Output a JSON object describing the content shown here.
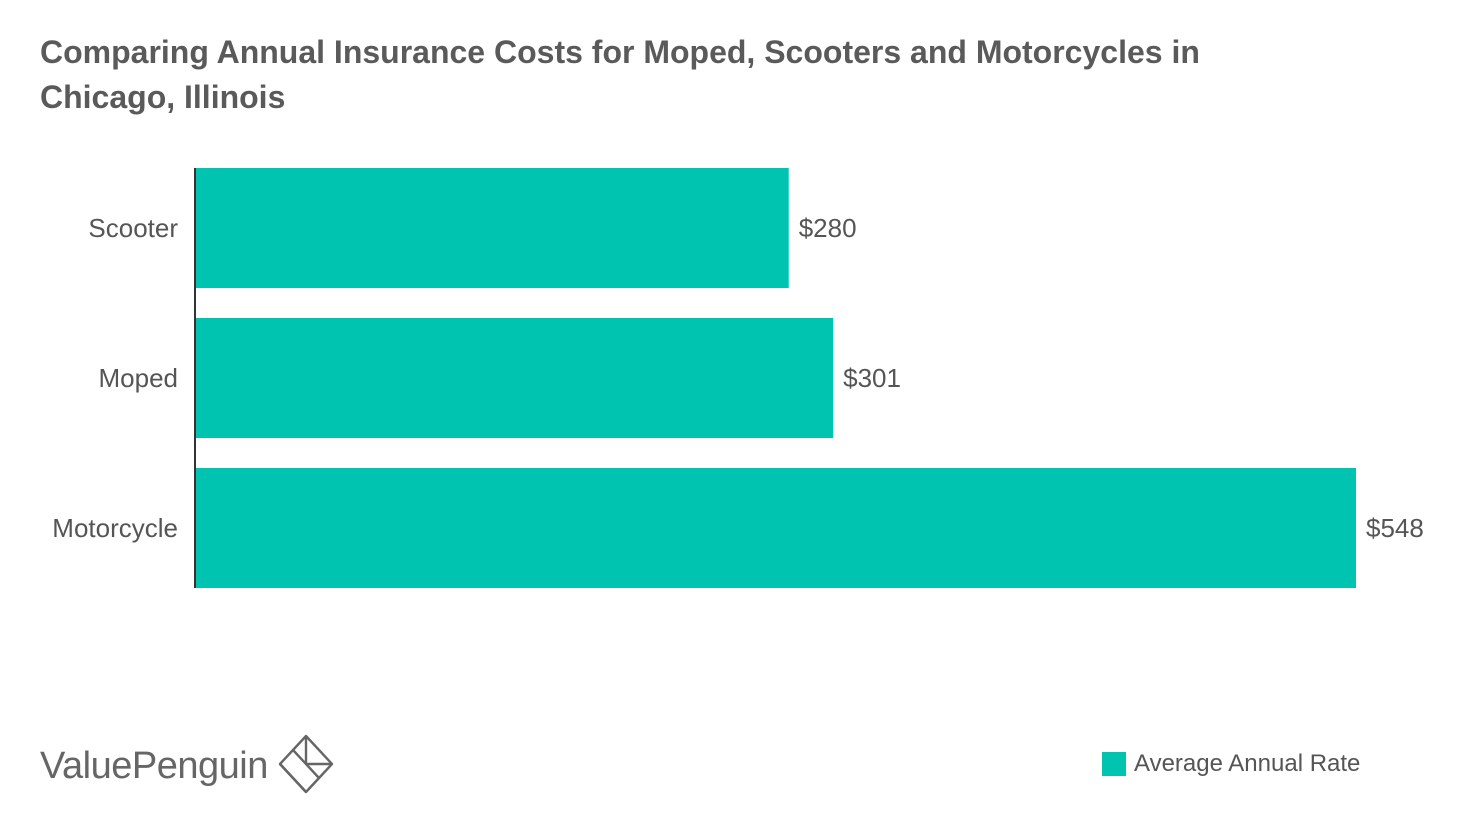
{
  "chart_data": {
    "type": "bar",
    "orientation": "horizontal",
    "title": "Comparing Annual Insurance Costs for Moped, Scooters and Motorcycles in Chicago, Illinois",
    "categories": [
      "Scooter",
      "Moped",
      "Motorcycle"
    ],
    "series": [
      {
        "name": "Average Annual Rate",
        "values": [
          280,
          301,
          548
        ],
        "value_labels": [
          "$280",
          "$301",
          "$548"
        ],
        "color": "#00c4b0"
      }
    ],
    "xlim": [
      0,
      548
    ],
    "grid": false,
    "legend": "bottom-right"
  },
  "branding": {
    "logo_text": "ValuePenguin",
    "logo_icon": "value-penguin-diamond-icon"
  },
  "colors": {
    "bar": "#00c4b0",
    "axis": "#333333",
    "text": "#555555"
  }
}
